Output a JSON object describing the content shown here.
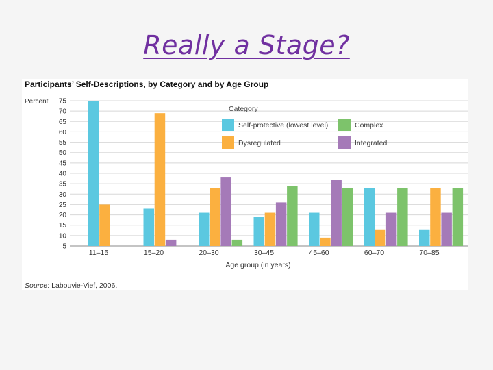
{
  "slide": {
    "title": "Really a Stage?"
  },
  "source": {
    "label": "Source",
    "text": ": Labouvie-Vief, 2006."
  },
  "chart_data": {
    "type": "bar",
    "title": "Participants’ Self-Descriptions, by Category and by Age Group",
    "ylabel": "Percent",
    "xlabel": "Age group (in years)",
    "ylim": [
      5,
      75
    ],
    "yticks": [
      75,
      70,
      65,
      60,
      55,
      50,
      45,
      40,
      35,
      30,
      25,
      20,
      15,
      10,
      5
    ],
    "legend_title": "Category",
    "categories": [
      "11–15",
      "15–20",
      "20–30",
      "30–45",
      "45–60",
      "60–70",
      "70–85"
    ],
    "series": [
      {
        "name": "Self-protective (lowest level)",
        "color": "#5bc8e0",
        "values": [
          75,
          23,
          21,
          19,
          21,
          33,
          13
        ]
      },
      {
        "name": "Dysregulated",
        "color": "#fbb040",
        "values": [
          25,
          69,
          33,
          21,
          9,
          13,
          33
        ]
      },
      {
        "name": "Integrated",
        "color": "#a57ab8",
        "values": [
          null,
          8,
          38,
          26,
          37,
          21,
          21
        ]
      },
      {
        "name": "Complex",
        "color": "#7dc36b",
        "values": [
          null,
          null,
          8,
          34,
          33,
          33,
          33
        ]
      }
    ]
  }
}
